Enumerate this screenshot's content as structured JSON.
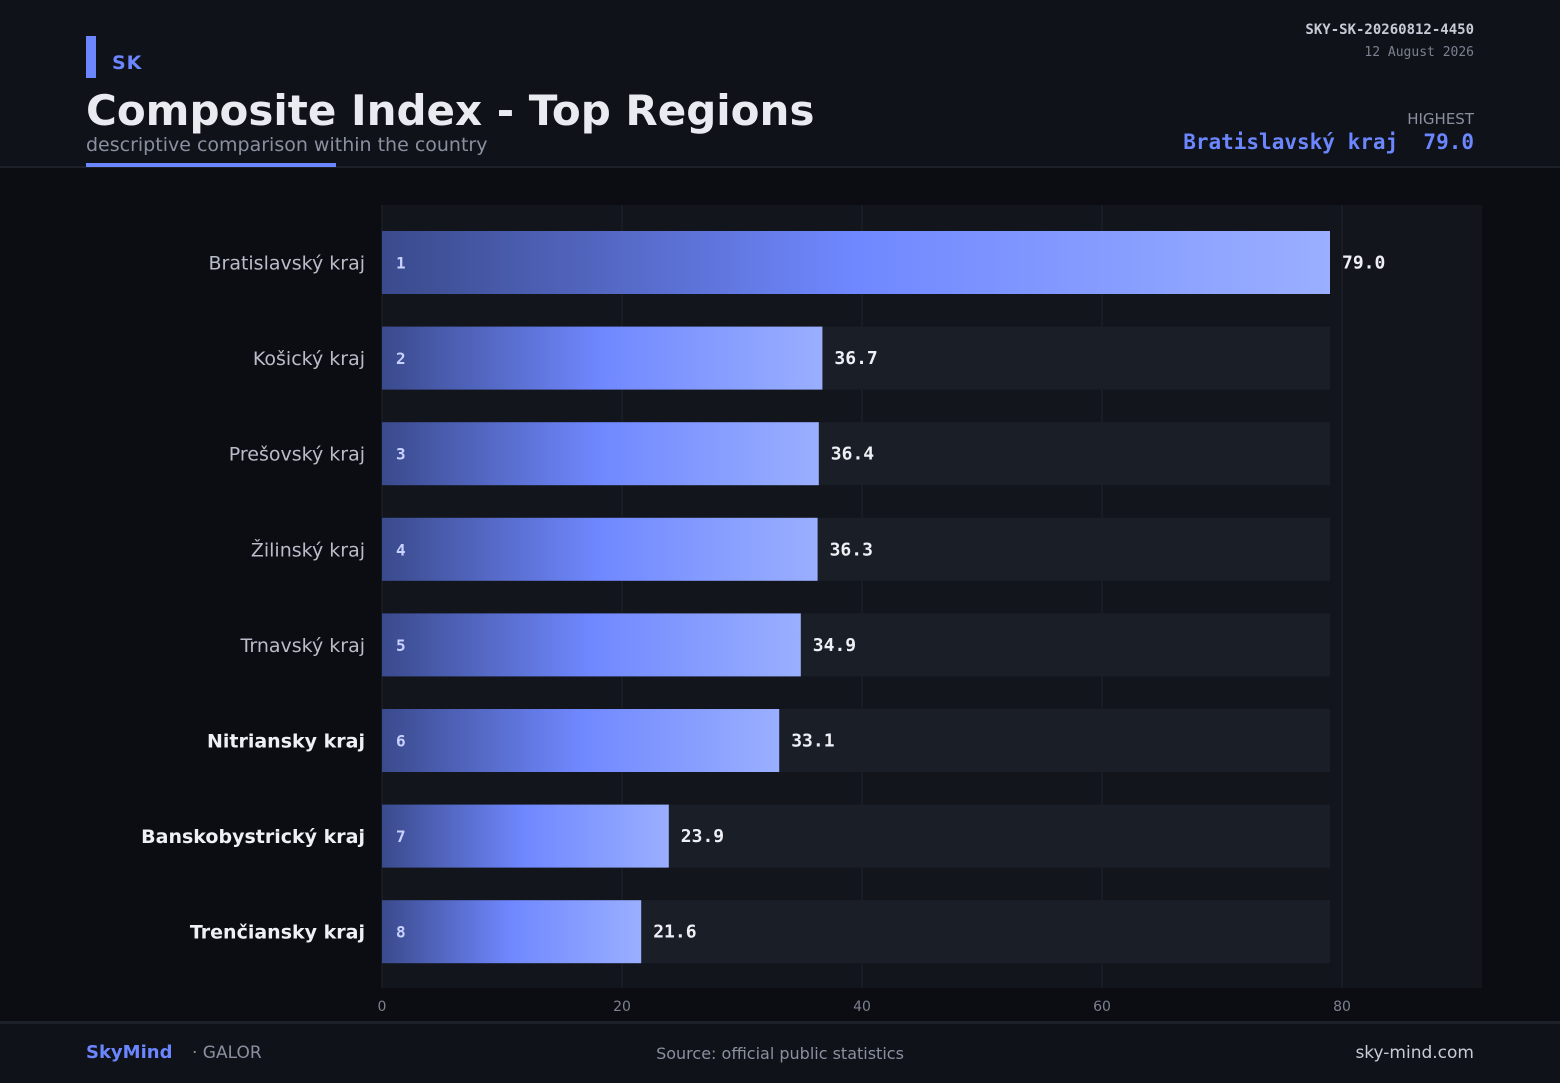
{
  "header": {
    "country": "SK",
    "title": "Composite Index - Top Regions",
    "subtitle": "descriptive comparison within the country",
    "doc_id": "SKY-SK-20260812-4450",
    "date": "12 August 2026",
    "highest_label": "HIGHEST",
    "highest_value": "Bratislavský kraj  79.0"
  },
  "footer": {
    "brand": "SkyMind",
    "brand_sub": "· GALOR",
    "source": "Source: official public statistics",
    "site": "sky-mind.com"
  },
  "colors": {
    "accent": "#6b86ff",
    "bar_start": "#3a4a8c",
    "bar_end": "#9aafff",
    "track": "#1a1e27",
    "plot_bg": "#12151c"
  },
  "chart_data": {
    "type": "bar",
    "orientation": "horizontal",
    "categories": [
      "Bratislavský kraj",
      "Košický kraj",
      "Prešovský kraj",
      "Žilinský kraj",
      "Trnavský kraj",
      "Nitriansky kraj",
      "Banskobystrický kraj",
      "Trenčiansky kraj"
    ],
    "values": [
      79.0,
      36.7,
      36.4,
      36.3,
      34.9,
      33.1,
      23.9,
      21.6
    ],
    "value_labels": [
      "79.0",
      "36.7",
      "36.4",
      "36.3",
      "34.9",
      "33.1",
      "23.9",
      "21.6"
    ],
    "ranks": [
      "1",
      "2",
      "3",
      "4",
      "5",
      "6",
      "7",
      "8"
    ],
    "bold_categories": [
      "Nitriansky kraj",
      "Banskobystrický kraj",
      "Trenčiansky kraj"
    ],
    "xlim": [
      0,
      91.5
    ],
    "xticks": [
      0,
      20,
      40,
      60,
      80
    ],
    "grid": true
  }
}
